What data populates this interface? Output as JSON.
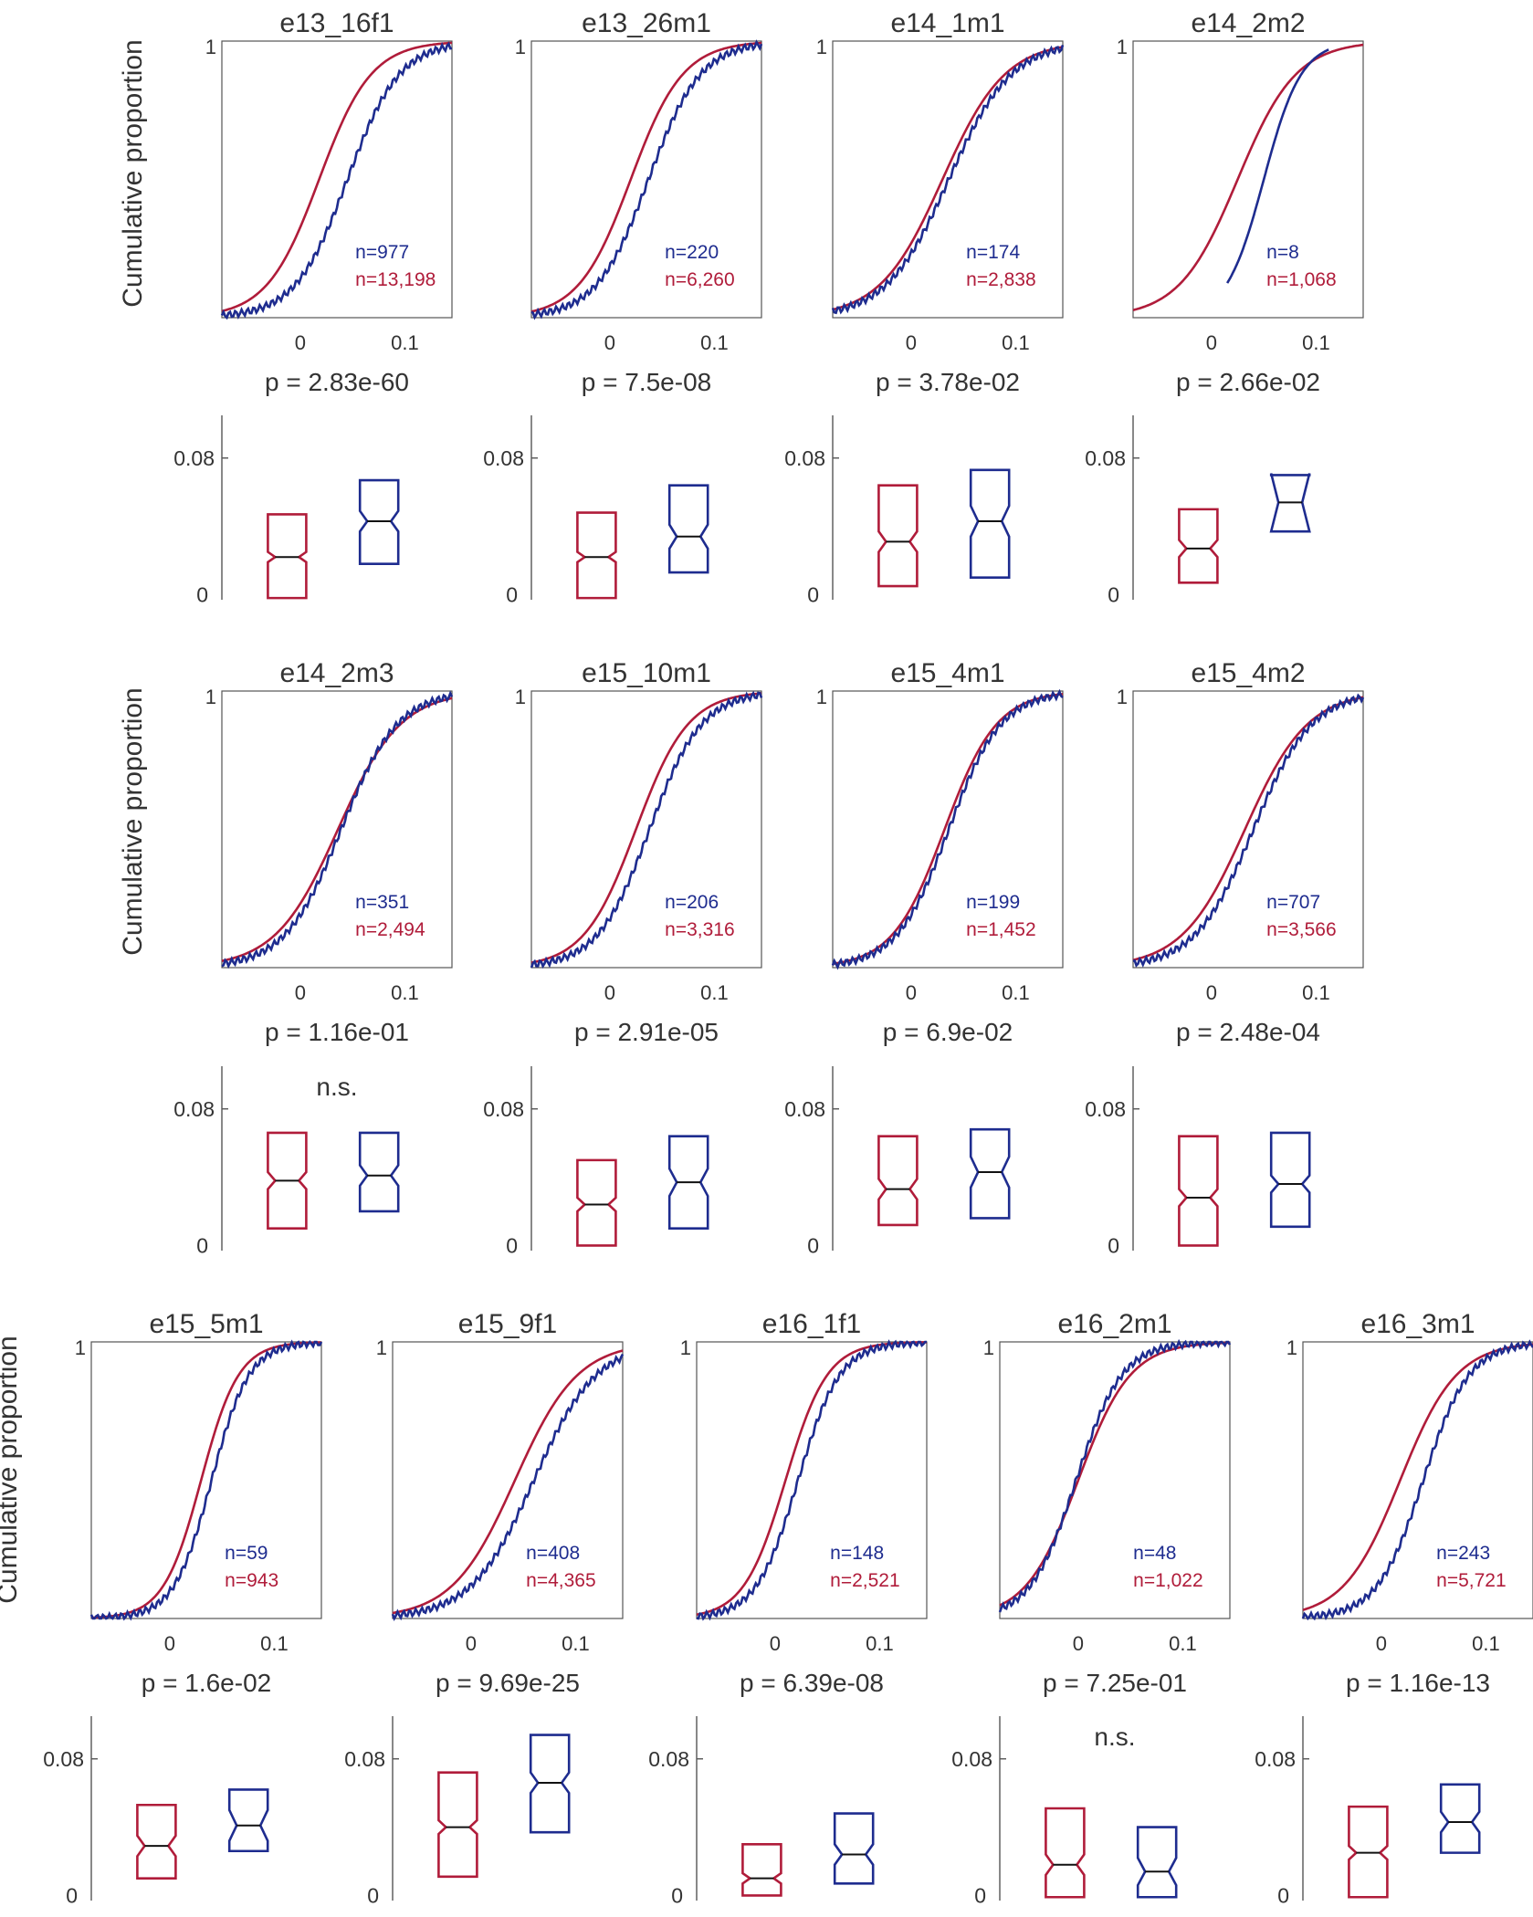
{
  "figure": {
    "colors": {
      "red": "#b01c3a",
      "blue": "#1e2c8f",
      "axis": "#555555",
      "text": "#333333"
    },
    "ylabel": "Cumulative proportion",
    "cdf_ytick_top": "1",
    "cdf_xticks": [
      "0",
      "0.1"
    ],
    "box_yticks": [
      "0",
      "0.08"
    ],
    "ns_label": "n.s."
  },
  "chart_data": [
    {
      "type": "cdf+box",
      "title": "e13_16f1",
      "n_blue": "n=977",
      "n_red": "n=13,198",
      "p": "p = 2.83e-60",
      "ns": false,
      "cdf": {
        "xlim": [
          -0.075,
          0.145
        ],
        "red": {
          "mid": 0.018,
          "scale": 0.025
        },
        "blue": {
          "mid": 0.045,
          "scale": 0.025
        }
      },
      "box": {
        "ylim": [
          -0.003,
          0.105
        ],
        "red": {
          "q1": -0.002,
          "median": 0.022,
          "q3": 0.047,
          "notch": 0.003
        },
        "blue": {
          "q1": 0.018,
          "median": 0.043,
          "q3": 0.067,
          "notch": 0.006
        }
      }
    },
    {
      "type": "cdf+box",
      "title": "e13_26m1",
      "n_blue": "n=220",
      "n_red": "n=6,260",
      "p": "p = 7.5e-08",
      "ns": false,
      "cdf": {
        "xlim": [
          -0.075,
          0.145
        ],
        "red": {
          "mid": 0.02,
          "scale": 0.025
        },
        "blue": {
          "mid": 0.037,
          "scale": 0.025
        }
      },
      "box": {
        "ylim": [
          -0.003,
          0.105
        ],
        "red": {
          "q1": -0.002,
          "median": 0.022,
          "q3": 0.048,
          "notch": 0.003
        },
        "blue": {
          "q1": 0.013,
          "median": 0.034,
          "q3": 0.064,
          "notch": 0.007
        }
      }
    },
    {
      "type": "cdf+box",
      "title": "e14_1m1",
      "n_blue": "n=174",
      "n_red": "n=2,838",
      "p": "p = 3.78e-02",
      "ns": false,
      "cdf": {
        "xlim": [
          -0.075,
          0.145
        ],
        "red": {
          "mid": 0.03,
          "scale": 0.03
        },
        "blue": {
          "mid": 0.036,
          "scale": 0.03
        }
      },
      "box": {
        "ylim": [
          -0.003,
          0.105
        ],
        "red": {
          "q1": 0.005,
          "median": 0.031,
          "q3": 0.064,
          "notch": 0.006
        },
        "blue": {
          "q1": 0.01,
          "median": 0.043,
          "q3": 0.073,
          "notch": 0.009
        }
      }
    },
    {
      "type": "cdf+box",
      "title": "e14_2m2",
      "n_blue": "n=8",
      "n_red": "n=1,068",
      "p": "p = 2.66e-02",
      "ns": false,
      "cdf": {
        "xlim": [
          -0.075,
          0.145
        ],
        "red": {
          "mid": 0.025,
          "scale": 0.028
        },
        "blue": {
          "mid": 0.05,
          "scale": 0.018,
          "xmin": 0.015,
          "xmax": 0.112
        }
      },
      "box": {
        "ylim": [
          -0.003,
          0.105
        ],
        "red": {
          "q1": 0.007,
          "median": 0.027,
          "q3": 0.05,
          "notch": 0.005
        },
        "blue": {
          "q1": 0.037,
          "median": 0.054,
          "q3": 0.07,
          "notch": 0.017
        }
      }
    },
    {
      "type": "cdf+box",
      "title": "e14_2m3",
      "n_blue": "n=351",
      "n_red": "n=2,494",
      "p": "p = 1.16e-01",
      "ns": true,
      "cdf": {
        "xlim": [
          -0.075,
          0.145
        ],
        "red": {
          "mid": 0.036,
          "scale": 0.03
        },
        "blue": {
          "mid": 0.039,
          "scale": 0.027
        }
      },
      "box": {
        "ylim": [
          -0.003,
          0.105
        ],
        "red": {
          "q1": 0.01,
          "median": 0.038,
          "q3": 0.066,
          "notch": 0.005
        },
        "blue": {
          "q1": 0.02,
          "median": 0.041,
          "q3": 0.066,
          "notch": 0.006
        }
      }
    },
    {
      "type": "cdf+box",
      "title": "e15_10m1",
      "n_blue": "n=206",
      "n_red": "n=3,316",
      "p": "p = 2.91e-05",
      "ns": false,
      "cdf": {
        "xlim": [
          -0.075,
          0.145
        ],
        "red": {
          "mid": 0.025,
          "scale": 0.025
        },
        "blue": {
          "mid": 0.038,
          "scale": 0.025
        }
      },
      "box": {
        "ylim": [
          -0.003,
          0.105
        ],
        "red": {
          "q1": 0.0,
          "median": 0.024,
          "q3": 0.05,
          "notch": 0.004
        },
        "blue": {
          "q1": 0.01,
          "median": 0.037,
          "q3": 0.064,
          "notch": 0.008
        }
      }
    },
    {
      "type": "cdf+box",
      "title": "e15_4m1",
      "n_blue": "n=199",
      "n_red": "n=1,452",
      "p": "p = 6.9e-02",
      "ns": false,
      "cdf": {
        "xlim": [
          -0.075,
          0.145
        ],
        "red": {
          "mid": 0.032,
          "scale": 0.025
        },
        "blue": {
          "mid": 0.036,
          "scale": 0.025
        }
      },
      "box": {
        "ylim": [
          -0.003,
          0.105
        ],
        "red": {
          "q1": 0.012,
          "median": 0.033,
          "q3": 0.064,
          "notch": 0.006
        },
        "blue": {
          "q1": 0.016,
          "median": 0.043,
          "q3": 0.068,
          "notch": 0.009
        }
      }
    },
    {
      "type": "cdf+box",
      "title": "e15_4m2",
      "n_blue": "n=707",
      "n_red": "n=3,566",
      "p": "p = 2.48e-04",
      "ns": false,
      "cdf": {
        "xlim": [
          -0.075,
          0.145
        ],
        "red": {
          "mid": 0.032,
          "scale": 0.03
        },
        "blue": {
          "mid": 0.04,
          "scale": 0.028
        }
      },
      "box": {
        "ylim": [
          -0.003,
          0.105
        ],
        "red": {
          "q1": 0.0,
          "median": 0.028,
          "q3": 0.064,
          "notch": 0.005
        },
        "blue": {
          "q1": 0.011,
          "median": 0.036,
          "q3": 0.066,
          "notch": 0.005
        }
      }
    },
    {
      "type": "cdf+box",
      "title": "e15_5m1",
      "n_blue": "n=59",
      "n_red": "n=943",
      "p": "p = 1.6e-02",
      "ns": false,
      "cdf": {
        "xlim": [
          -0.075,
          0.145
        ],
        "red": {
          "mid": 0.03,
          "scale": 0.018
        },
        "blue": {
          "mid": 0.04,
          "scale": 0.018
        }
      },
      "box": {
        "ylim": [
          -0.003,
          0.105
        ],
        "red": {
          "q1": 0.01,
          "median": 0.029,
          "q3": 0.053,
          "notch": 0.006
        },
        "blue": {
          "q1": 0.026,
          "median": 0.041,
          "q3": 0.062,
          "notch": 0.009
        }
      }
    },
    {
      "type": "cdf+box",
      "title": "e15_9f1",
      "n_blue": "n=408",
      "n_red": "n=4,365",
      "p": "p = 9.69e-25",
      "ns": false,
      "cdf": {
        "xlim": [
          -0.075,
          0.145
        ],
        "red": {
          "mid": 0.042,
          "scale": 0.03
        },
        "blue": {
          "mid": 0.06,
          "scale": 0.03
        }
      },
      "box": {
        "ylim": [
          -0.003,
          0.105
        ],
        "red": {
          "q1": 0.011,
          "median": 0.04,
          "q3": 0.072,
          "notch": 0.004
        },
        "blue": {
          "q1": 0.037,
          "median": 0.066,
          "q3": 0.094,
          "notch": 0.006
        }
      }
    },
    {
      "type": "cdf+box",
      "title": "e16_1f1",
      "n_blue": "n=148",
      "n_red": "n=2,521",
      "p": "p = 6.39e-08",
      "ns": false,
      "cdf": {
        "xlim": [
          -0.075,
          0.145
        ],
        "red": {
          "mid": 0.01,
          "scale": 0.02
        },
        "blue": {
          "mid": 0.022,
          "scale": 0.02
        }
      },
      "box": {
        "ylim": [
          -0.003,
          0.105
        ],
        "red": {
          "q1": 0.0,
          "median": 0.01,
          "q3": 0.03,
          "notch": 0.003
        },
        "blue": {
          "q1": 0.007,
          "median": 0.024,
          "q3": 0.048,
          "notch": 0.006
        }
      }
    },
    {
      "type": "cdf+box",
      "title": "e16_2m1",
      "n_blue": "n=48",
      "n_red": "n=1,022",
      "p": "p = 7.25e-01",
      "ns": true,
      "cdf": {
        "xlim": [
          -0.075,
          0.145
        ],
        "red": {
          "mid": 0.0,
          "scale": 0.025
        },
        "blue": {
          "mid": -0.002,
          "scale": 0.022
        }
      },
      "box": {
        "ylim": [
          -0.003,
          0.105
        ],
        "red": {
          "q1": -0.001,
          "median": 0.018,
          "q3": 0.051,
          "notch": 0.006
        },
        "blue": {
          "q1": -0.001,
          "median": 0.014,
          "q3": 0.04,
          "notch": 0.008
        }
      }
    },
    {
      "type": "cdf+box",
      "title": "e16_3m1",
      "n_blue": "n=243",
      "n_red": "n=5,721",
      "p": "p = 1.16e-13",
      "ns": false,
      "cdf": {
        "xlim": [
          -0.075,
          0.145
        ],
        "red": {
          "mid": 0.018,
          "scale": 0.027
        },
        "blue": {
          "mid": 0.04,
          "scale": 0.022
        }
      },
      "box": {
        "ylim": [
          -0.003,
          0.105
        ],
        "red": {
          "q1": -0.001,
          "median": 0.025,
          "q3": 0.052,
          "notch": 0.004
        },
        "blue": {
          "q1": 0.025,
          "median": 0.043,
          "q3": 0.065,
          "notch": 0.006
        }
      }
    }
  ]
}
